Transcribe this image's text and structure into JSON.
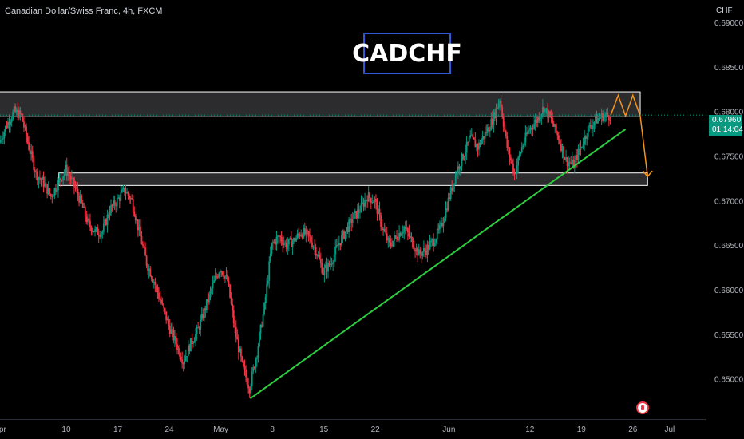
{
  "header": {
    "symbol_description": "Canadian Dollar/Swiss Franc, 4h, FXCM",
    "title_badge": "CADCHF"
  },
  "price_axis": {
    "currency": "CHF",
    "labels": [
      "0.69000",
      "0.68500",
      "0.68000",
      "0.67500",
      "0.67000",
      "0.66500",
      "0.66000",
      "0.65500",
      "0.65000"
    ]
  },
  "price_tag": {
    "price": "0.67960",
    "countdown": "01:14:04"
  },
  "colors": {
    "background": "#000000",
    "bull_candle": "#089981",
    "bear_candle": "#f23645",
    "trendline": "#2ecc40",
    "projection": "#f7931a",
    "zone_border": "#ffffff",
    "title_border": "#2f59d6"
  },
  "chart_data": {
    "type": "candlestick",
    "title": "CADCHF",
    "symbol": "Canadian Dollar/Swiss Franc, 4h, FXCM",
    "ylabel": "CHF",
    "ylim": [
      0.6455,
      0.6925
    ],
    "y_ticks": [
      0.69,
      0.685,
      0.68,
      0.675,
      0.67,
      0.665,
      0.66,
      0.655,
      0.65
    ],
    "x_ticks": [
      {
        "label": "Apr",
        "x": "2023-04-01"
      },
      {
        "label": "10",
        "x": "2023-04-10"
      },
      {
        "label": "17",
        "x": "2023-04-17"
      },
      {
        "label": "24",
        "x": "2023-04-24"
      },
      {
        "label": "May",
        "x": "2023-05-01"
      },
      {
        "label": "8",
        "x": "2023-05-08"
      },
      {
        "label": "15",
        "x": "2023-05-15"
      },
      {
        "label": "22",
        "x": "2023-05-22"
      },
      {
        "label": "Jun",
        "x": "2023-06-01"
      },
      {
        "label": "12",
        "x": "2023-06-12"
      },
      {
        "label": "19",
        "x": "2023-06-19"
      },
      {
        "label": "26",
        "x": "2023-06-26"
      },
      {
        "label": "Jul",
        "x": "2023-07-01"
      }
    ],
    "xlim": [
      "2023-04-01",
      "2023-07-06"
    ],
    "close_path": [
      [
        "2023-04-01",
        0.6765
      ],
      [
        "2023-04-02",
        0.6785
      ],
      [
        "2023-04-03",
        0.68
      ],
      [
        "2023-04-04",
        0.6795
      ],
      [
        "2023-04-05",
        0.676
      ],
      [
        "2023-04-06",
        0.673
      ],
      [
        "2023-04-07",
        0.672
      ],
      [
        "2023-04-08",
        0.6705
      ],
      [
        "2023-04-09",
        0.672
      ],
      [
        "2023-04-10",
        0.6735
      ],
      [
        "2023-04-11",
        0.672
      ],
      [
        "2023-04-12",
        0.67
      ],
      [
        "2023-04-13",
        0.6675
      ],
      [
        "2023-04-14",
        0.6665
      ],
      [
        "2023-04-15",
        0.6665
      ],
      [
        "2023-04-16",
        0.669
      ],
      [
        "2023-04-17",
        0.67
      ],
      [
        "2023-04-18",
        0.6712
      ],
      [
        "2023-04-19",
        0.67
      ],
      [
        "2023-04-20",
        0.6665
      ],
      [
        "2023-04-21",
        0.663
      ],
      [
        "2023-04-22",
        0.661
      ],
      [
        "2023-04-23",
        0.6585
      ],
      [
        "2023-04-24",
        0.656
      ],
      [
        "2023-04-25",
        0.654
      ],
      [
        "2023-04-26",
        0.652
      ],
      [
        "2023-04-27",
        0.654
      ],
      [
        "2023-04-28",
        0.6555
      ],
      [
        "2023-04-29",
        0.658
      ],
      [
        "2023-04-30",
        0.6605
      ],
      [
        "2023-05-01",
        0.6625
      ],
      [
        "2023-05-02",
        0.661
      ],
      [
        "2023-05-03",
        0.6555
      ],
      [
        "2023-05-04",
        0.6515
      ],
      [
        "2023-05-05",
        0.649
      ],
      [
        "2023-05-06",
        0.653
      ],
      [
        "2023-05-07",
        0.658
      ],
      [
        "2023-05-08",
        0.665
      ],
      [
        "2023-05-09",
        0.666
      ],
      [
        "2023-05-10",
        0.665
      ],
      [
        "2023-05-11",
        0.6655
      ],
      [
        "2023-05-12",
        0.6665
      ],
      [
        "2023-05-13",
        0.666
      ],
      [
        "2023-05-14",
        0.6645
      ],
      [
        "2023-05-15",
        0.662
      ],
      [
        "2023-05-16",
        0.663
      ],
      [
        "2023-05-17",
        0.665
      ],
      [
        "2023-05-18",
        0.6665
      ],
      [
        "2023-05-19",
        0.668
      ],
      [
        "2023-05-20",
        0.669
      ],
      [
        "2023-05-21",
        0.6705
      ],
      [
        "2023-05-22",
        0.67
      ],
      [
        "2023-05-23",
        0.667
      ],
      [
        "2023-05-24",
        0.665
      ],
      [
        "2023-05-25",
        0.666
      ],
      [
        "2023-05-26",
        0.667
      ],
      [
        "2023-05-27",
        0.6655
      ],
      [
        "2023-05-28",
        0.664
      ],
      [
        "2023-05-29",
        0.6645
      ],
      [
        "2023-05-30",
        0.6655
      ],
      [
        "2023-05-31",
        0.667
      ],
      [
        "2023-06-01",
        0.67
      ],
      [
        "2023-06-02",
        0.673
      ],
      [
        "2023-06-03",
        0.675
      ],
      [
        "2023-06-04",
        0.677
      ],
      [
        "2023-06-05",
        0.676
      ],
      [
        "2023-06-06",
        0.6775
      ],
      [
        "2023-06-07",
        0.679
      ],
      [
        "2023-06-08",
        0.6815
      ],
      [
        "2023-06-09",
        0.676
      ],
      [
        "2023-06-10",
        0.673
      ],
      [
        "2023-06-11",
        0.676
      ],
      [
        "2023-06-12",
        0.678
      ],
      [
        "2023-06-13",
        0.679
      ],
      [
        "2023-06-14",
        0.6805
      ],
      [
        "2023-06-15",
        0.679
      ],
      [
        "2023-06-16",
        0.677
      ],
      [
        "2023-06-17",
        0.6745
      ],
      [
        "2023-06-18",
        0.674
      ],
      [
        "2023-06-19",
        0.676
      ],
      [
        "2023-06-20",
        0.678
      ],
      [
        "2023-06-21",
        0.679
      ],
      [
        "2023-06-22",
        0.6795
      ],
      [
        "2023-06-23",
        0.6796
      ]
    ],
    "zones": [
      {
        "name": "resistance",
        "y_low": 0.6794,
        "y_high": 0.6822,
        "x_start": "2023-03-31",
        "x_end": "2023-06-27"
      },
      {
        "name": "support",
        "y_low": 0.6717,
        "y_high": 0.6731,
        "x_start": "2023-04-09",
        "x_end": "2023-06-28"
      }
    ],
    "trendline": {
      "from": [
        "2023-05-05",
        0.6478
      ],
      "to": [
        "2023-06-25",
        0.678
      ]
    },
    "projection": [
      [
        "2023-06-23",
        0.6796
      ],
      [
        "2023-06-24",
        0.6818
      ],
      [
        "2023-06-25",
        0.6795
      ],
      [
        "2023-06-26",
        0.6818
      ],
      [
        "2023-06-27",
        0.6795
      ],
      [
        "2023-06-28",
        0.6727
      ]
    ],
    "last_price": 0.6796
  }
}
